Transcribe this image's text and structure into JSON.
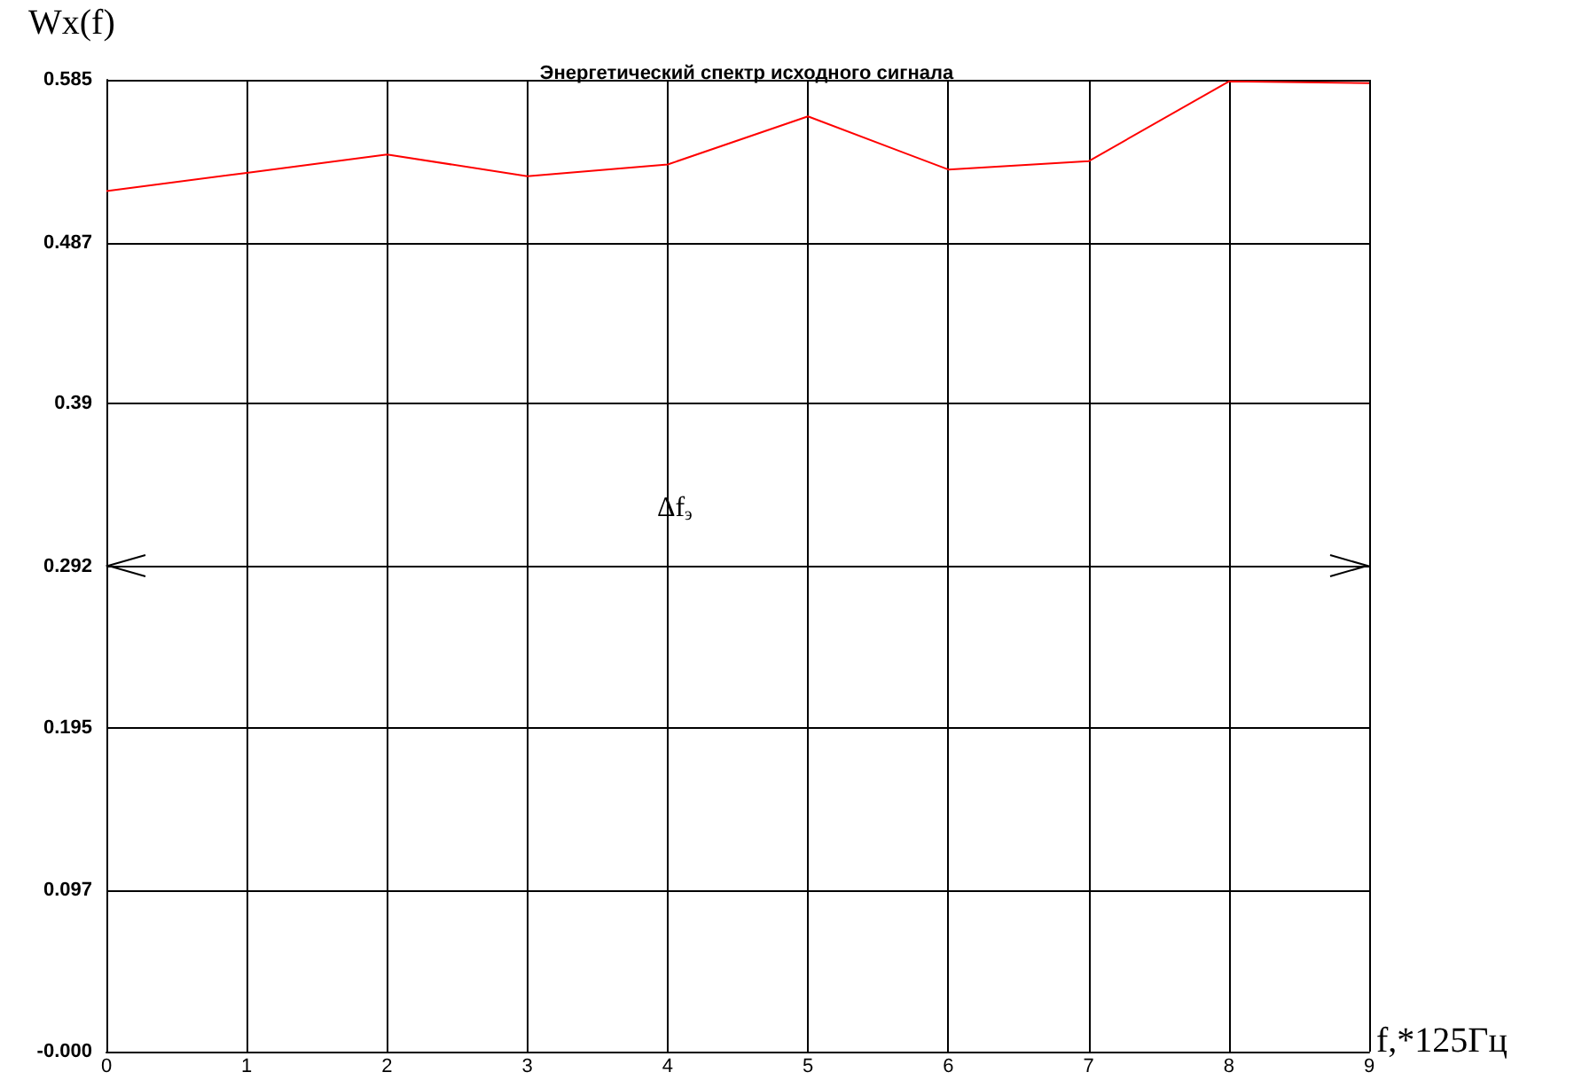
{
  "chart_data": {
    "type": "line",
    "title": "Энергетический спектр исходного сигнала",
    "xlabel": "f,*125Гц",
    "ylabel": "Wx(f)",
    "x": [
      0,
      1,
      2,
      3,
      4,
      5,
      6,
      7,
      8,
      9
    ],
    "series": [
      {
        "color": "#ff0000",
        "values": [
          0.518,
          0.529,
          0.54,
          0.527,
          0.534,
          0.563,
          0.531,
          0.536,
          0.584,
          0.583
        ]
      }
    ],
    "xlim": [
      0,
      9
    ],
    "xticks": [
      0,
      1,
      2,
      3,
      4,
      5,
      6,
      7,
      8,
      9
    ],
    "ylim": [
      0,
      0.585
    ],
    "yticks": [
      {
        "value": 0,
        "label": "-0.000"
      },
      0.097,
      0.195,
      0.292,
      0.39,
      0.487,
      0.585
    ],
    "annotations": [
      "Δf$_{э}$"
    ],
    "grid": true,
    "marker": "none",
    "line_style": "solid"
  }
}
